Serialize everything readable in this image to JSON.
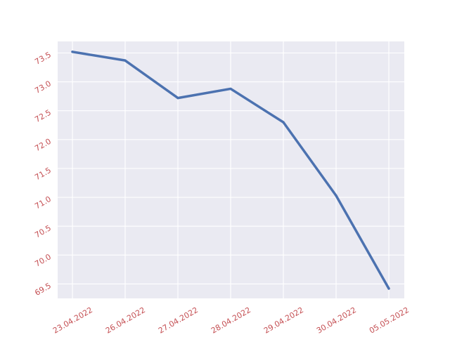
{
  "chart_data": {
    "type": "line",
    "title": "",
    "xlabel": "",
    "ylabel": "",
    "categories": [
      "23.04.2022",
      "26.04.2022",
      "27.04.2022",
      "28.04.2022",
      "29.04.2022",
      "30.04.2022",
      "05.05.2022"
    ],
    "series": [
      {
        "values": [
          73.52,
          73.37,
          72.72,
          72.88,
          72.3,
          71.03,
          69.42
        ]
      }
    ],
    "ylim": [
      69.25,
      73.7
    ],
    "yticks": [
      69.5,
      70.0,
      70.5,
      71.0,
      71.5,
      72.0,
      72.5,
      73.0,
      73.5
    ],
    "grid": true,
    "colors": {
      "plot_background": "#eaeaf2",
      "grid": "#ffffff",
      "line": "#4c72b0",
      "tick_label": "#c44e52"
    }
  }
}
